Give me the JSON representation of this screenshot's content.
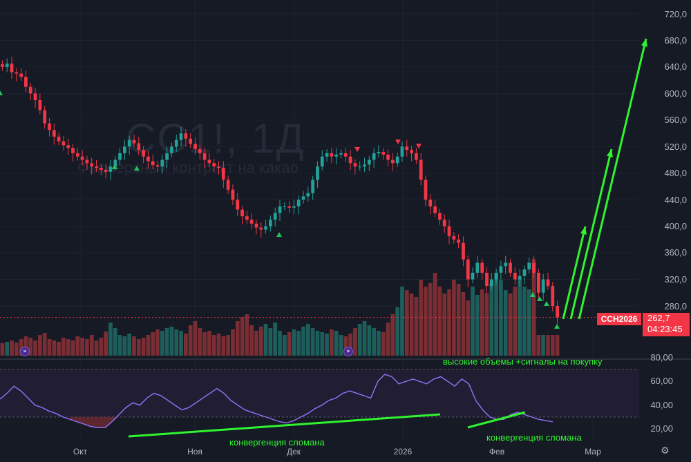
{
  "watermark": {
    "title": "CC1!, 1Д",
    "subtitle": "Фьючерсный контракт на какао"
  },
  "price_axis": [
    "720,0",
    "680,0",
    "640,0",
    "600,0",
    "560,0",
    "520,0",
    "480,0",
    "440,0",
    "400,0",
    "360,0",
    "320,0",
    "280,0"
  ],
  "rsi_axis": [
    "80,00",
    "60,00",
    "40,00",
    "20,00"
  ],
  "time_axis": [
    "Окт",
    "Ноя",
    "Дек",
    "2026",
    "Фев",
    "Мар"
  ],
  "price_tag": {
    "ticker": "CCH2026",
    "price": "262,7",
    "countdown": "04:23:45"
  },
  "annotations": {
    "volume_note": "высокие объемы +сигналы на покупку",
    "divergence_1": "конвергенция сломана",
    "divergence_2": "конвергенция сломана"
  },
  "icons": {
    "event_marker": "event-icon",
    "settings": "gear-icon"
  },
  "colors": {
    "up": "#22a199",
    "down": "#f23645",
    "annotation": "#2ff52f",
    "rsi": "#8d6ff0",
    "background": "#161a25"
  },
  "chart_data": {
    "type": "candlestick",
    "title": "CC1!, 1Д",
    "price_range": [
      240,
      730
    ],
    "rsi_range": [
      10,
      80
    ],
    "rsi_levels": [
      30,
      70
    ],
    "candle_closes": [
      640,
      645,
      632,
      630,
      625,
      610,
      600,
      590,
      575,
      555,
      545,
      535,
      528,
      522,
      518,
      510,
      505,
      500,
      495,
      490,
      488,
      485,
      482,
      490,
      500,
      510,
      520,
      530,
      525,
      515,
      505,
      498,
      492,
      490,
      500,
      510,
      520,
      530,
      540,
      532,
      524,
      516,
      510,
      500,
      495,
      490,
      488,
      470,
      455,
      440,
      425,
      415,
      410,
      404,
      398,
      395,
      400,
      410,
      420,
      430,
      430,
      428,
      430,
      440,
      445,
      450,
      470,
      490,
      505,
      510,
      505,
      508,
      510,
      505,
      495,
      490,
      490,
      493,
      500,
      510,
      512,
      508,
      500,
      495,
      505,
      520,
      515,
      510,
      500,
      470,
      440,
      430,
      420,
      410,
      400,
      385,
      380,
      375,
      350,
      320,
      330,
      345,
      330,
      310,
      320,
      330,
      340,
      345,
      330,
      320,
      325,
      335,
      345,
      330,
      300,
      320,
      310,
      280,
      262.7
    ],
    "volume_levels": [
      18,
      20,
      22,
      19,
      24,
      28,
      26,
      22,
      30,
      33,
      24,
      22,
      20,
      26,
      24,
      22,
      28,
      26,
      24,
      30,
      22,
      26,
      35,
      48,
      40,
      30,
      28,
      32,
      28,
      24,
      26,
      30,
      34,
      38,
      36,
      40,
      42,
      38,
      36,
      32,
      44,
      50,
      40,
      34,
      36,
      30,
      32,
      28,
      30,
      38,
      50,
      56,
      60,
      44,
      36,
      42,
      46,
      40,
      48,
      36,
      30,
      34,
      38,
      36,
      42,
      46,
      40,
      36,
      34,
      32,
      38,
      36,
      30,
      28,
      32,
      40,
      46,
      50,
      44,
      40,
      36,
      34,
      48,
      60,
      70,
      100,
      95,
      90,
      85,
      110,
      100,
      105,
      120,
      100,
      90,
      96,
      110,
      104,
      92,
      80,
      100,
      88,
      96,
      90,
      104,
      118,
      110,
      95,
      90,
      100,
      112,
      100,
      96,
      140
    ],
    "rsi_values": [
      45,
      50,
      56,
      52,
      46,
      40,
      38,
      35,
      33,
      30,
      28,
      26,
      24,
      22,
      21,
      21,
      26,
      32,
      38,
      42,
      40,
      46,
      50,
      48,
      44,
      40,
      36,
      38,
      42,
      46,
      50,
      54,
      50,
      44,
      40,
      36,
      34,
      32,
      30,
      28,
      26,
      25,
      27,
      30,
      33,
      37,
      40,
      44,
      46,
      50,
      52,
      50,
      48,
      46,
      60,
      66,
      64,
      58,
      60,
      62,
      60,
      58,
      62,
      64,
      60,
      56,
      62,
      58,
      44,
      36,
      30,
      28,
      28,
      32,
      34,
      32,
      30,
      28,
      27,
      26
    ],
    "annotations": [
      "высокие объемы +сигналы на покупку",
      "конвергенция сломана",
      "конвергенция сломана"
    ]
  }
}
